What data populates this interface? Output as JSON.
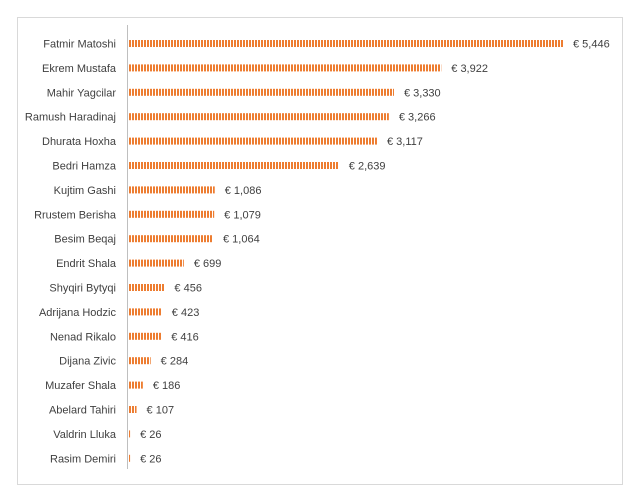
{
  "chart_data": {
    "type": "bar",
    "orientation": "horizontal",
    "title": "",
    "xlabel": "",
    "ylabel": "",
    "categories": [
      "Fatmir Matoshi",
      "Ekrem Mustafa",
      "Mahir Yagcilar",
      "Ramush Haradinaj",
      "Dhurata Hoxha",
      "Bedri Hamza",
      "Kujtim Gashi",
      "Rrustem Berisha",
      "Besim Beqaj",
      "Endrit Shala",
      "Shyqiri Bytyqi",
      "Adrijana Hodzic",
      "Nenad Rikalo",
      "Dijana Zivic",
      "Muzafer Shala",
      "Abelard Tahiri",
      "Valdrin Lluka",
      "Rasim Demiri"
    ],
    "values": [
      5446,
      3922,
      3330,
      3266,
      3117,
      2639,
      1086,
      1079,
      1064,
      699,
      456,
      423,
      416,
      284,
      186,
      107,
      26,
      26
    ],
    "value_labels": [
      "€ 5,446",
      "€ 3,922",
      "€ 3,330",
      "€ 3,266",
      "€ 3,117",
      "€ 2,639",
      "€ 1,086",
      "€ 1,079",
      "€ 1,064",
      "€ 699",
      "€ 456",
      "€ 423",
      "€ 416",
      "€ 284",
      "€ 186",
      "€ 107",
      "€ 26",
      "€ 26"
    ],
    "bar_color": "#ED7D31",
    "bar_pattern": "vertical-stripes",
    "grid": false,
    "legend": "none"
  }
}
